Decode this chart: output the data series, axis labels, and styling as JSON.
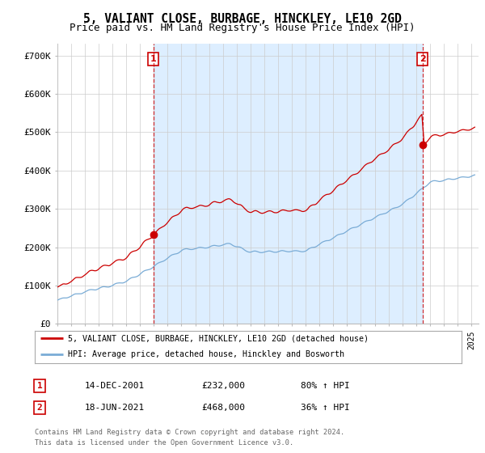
{
  "title": "5, VALIANT CLOSE, BURBAGE, HINCKLEY, LE10 2GD",
  "subtitle": "Price paid vs. HM Land Registry's House Price Index (HPI)",
  "ylim": [
    0,
    730000
  ],
  "yticks": [
    0,
    100000,
    200000,
    300000,
    400000,
    500000,
    600000,
    700000
  ],
  "ytick_labels": [
    "£0",
    "£100K",
    "£200K",
    "£300K",
    "£400K",
    "£500K",
    "£600K",
    "£700K"
  ],
  "sale1_date_num": 2001.96,
  "sale1_price": 232000,
  "sale2_date_num": 2021.46,
  "sale2_price": 468000,
  "legend_line1": "5, VALIANT CLOSE, BURBAGE, HINCKLEY, LE10 2GD (detached house)",
  "legend_line2": "HPI: Average price, detached house, Hinckley and Bosworth",
  "table_row1": [
    "1",
    "14-DEC-2001",
    "£232,000",
    "80% ↑ HPI"
  ],
  "table_row2": [
    "2",
    "18-JUN-2021",
    "£468,000",
    "36% ↑ HPI"
  ],
  "footnote1": "Contains HM Land Registry data © Crown copyright and database right 2024.",
  "footnote2": "This data is licensed under the Open Government Licence v3.0.",
  "hpi_color": "#7aacd6",
  "price_color": "#cc0000",
  "shade_color": "#ddeeff",
  "vline_color": "#cc0000",
  "bg_color": "#ffffff",
  "grid_color": "#cccccc",
  "title_fontsize": 10.5,
  "subtitle_fontsize": 9
}
